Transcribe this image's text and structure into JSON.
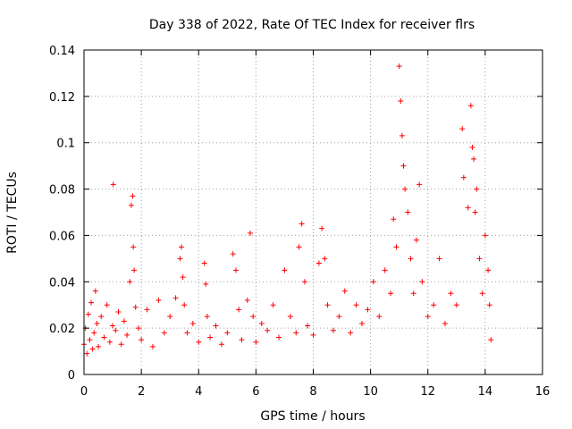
{
  "chart_data": {
    "type": "scatter",
    "title": "Day 338 of 2022, Rate Of TEC Index for receiver flrs",
    "xlabel": "GPS time / hours",
    "ylabel": "ROTI / TECUs",
    "xlim": [
      0,
      16
    ],
    "ylim": [
      0,
      0.14
    ],
    "xticks": [
      0,
      2,
      4,
      6,
      8,
      10,
      12,
      14,
      16
    ],
    "xtick_labels": [
      "0",
      "2",
      "4",
      "6",
      "8",
      "10",
      "12",
      "14",
      "16"
    ],
    "yticks": [
      0,
      0.02,
      0.04,
      0.06,
      0.08,
      0.1,
      0.12,
      0.14
    ],
    "ytick_labels": [
      "0",
      "0.02",
      "0.04",
      "0.06",
      "0.08",
      "0.1",
      "0.12",
      "0.14"
    ],
    "grid": true,
    "marker": "+",
    "color": "#ff0000",
    "series": [
      {
        "name": "flrs",
        "x": [
          0.0,
          0.05,
          0.1,
          0.15,
          0.2,
          0.25,
          0.3,
          0.35,
          0.4,
          0.45,
          0.5,
          0.6,
          0.7,
          0.8,
          0.9,
          1.0,
          1.02,
          1.1,
          1.2,
          1.3,
          1.4,
          1.5,
          1.6,
          1.65,
          1.7,
          1.72,
          1.75,
          1.8,
          1.9,
          2.0,
          2.2,
          2.4,
          2.6,
          2.8,
          3.0,
          3.2,
          3.35,
          3.4,
          3.45,
          3.5,
          3.6,
          3.8,
          4.0,
          4.2,
          4.25,
          4.3,
          4.4,
          4.6,
          4.8,
          5.0,
          5.2,
          5.3,
          5.4,
          5.5,
          5.7,
          5.8,
          5.9,
          6.0,
          6.2,
          6.4,
          6.6,
          6.8,
          7.0,
          7.2,
          7.4,
          7.5,
          7.6,
          7.7,
          7.8,
          8.0,
          8.2,
          8.3,
          8.4,
          8.5,
          8.7,
          8.9,
          9.1,
          9.3,
          9.5,
          9.7,
          9.9,
          10.1,
          10.3,
          10.5,
          10.7,
          10.8,
          10.9,
          11.0,
          11.05,
          11.1,
          11.15,
          11.2,
          11.3,
          11.4,
          11.5,
          11.6,
          11.7,
          11.8,
          12.0,
          12.2,
          12.4,
          12.6,
          12.8,
          13.0,
          13.2,
          13.25,
          13.4,
          13.5,
          13.55,
          13.6,
          13.65,
          13.7,
          13.8,
          13.9,
          14.0,
          14.1,
          14.15,
          14.2
        ],
        "y": [
          0.013,
          0.02,
          0.009,
          0.026,
          0.015,
          0.031,
          0.011,
          0.018,
          0.036,
          0.022,
          0.012,
          0.025,
          0.016,
          0.03,
          0.014,
          0.021,
          0.082,
          0.019,
          0.027,
          0.013,
          0.023,
          0.017,
          0.04,
          0.073,
          0.077,
          0.055,
          0.045,
          0.029,
          0.02,
          0.015,
          0.028,
          0.012,
          0.032,
          0.018,
          0.025,
          0.033,
          0.05,
          0.055,
          0.042,
          0.03,
          0.018,
          0.022,
          0.014,
          0.048,
          0.039,
          0.025,
          0.016,
          0.021,
          0.013,
          0.018,
          0.052,
          0.045,
          0.028,
          0.015,
          0.032,
          0.061,
          0.025,
          0.014,
          0.022,
          0.019,
          0.03,
          0.016,
          0.045,
          0.025,
          0.018,
          0.055,
          0.065,
          0.04,
          0.021,
          0.017,
          0.048,
          0.063,
          0.05,
          0.03,
          0.019,
          0.025,
          0.036,
          0.018,
          0.03,
          0.022,
          0.028,
          0.04,
          0.025,
          0.045,
          0.035,
          0.067,
          0.055,
          0.133,
          0.118,
          0.103,
          0.09,
          0.08,
          0.07,
          0.05,
          0.035,
          0.058,
          0.082,
          0.04,
          0.025,
          0.03,
          0.05,
          0.022,
          0.035,
          0.03,
          0.106,
          0.085,
          0.072,
          0.116,
          0.098,
          0.093,
          0.07,
          0.08,
          0.05,
          0.035,
          0.06,
          0.045,
          0.03,
          0.015
        ]
      }
    ]
  }
}
